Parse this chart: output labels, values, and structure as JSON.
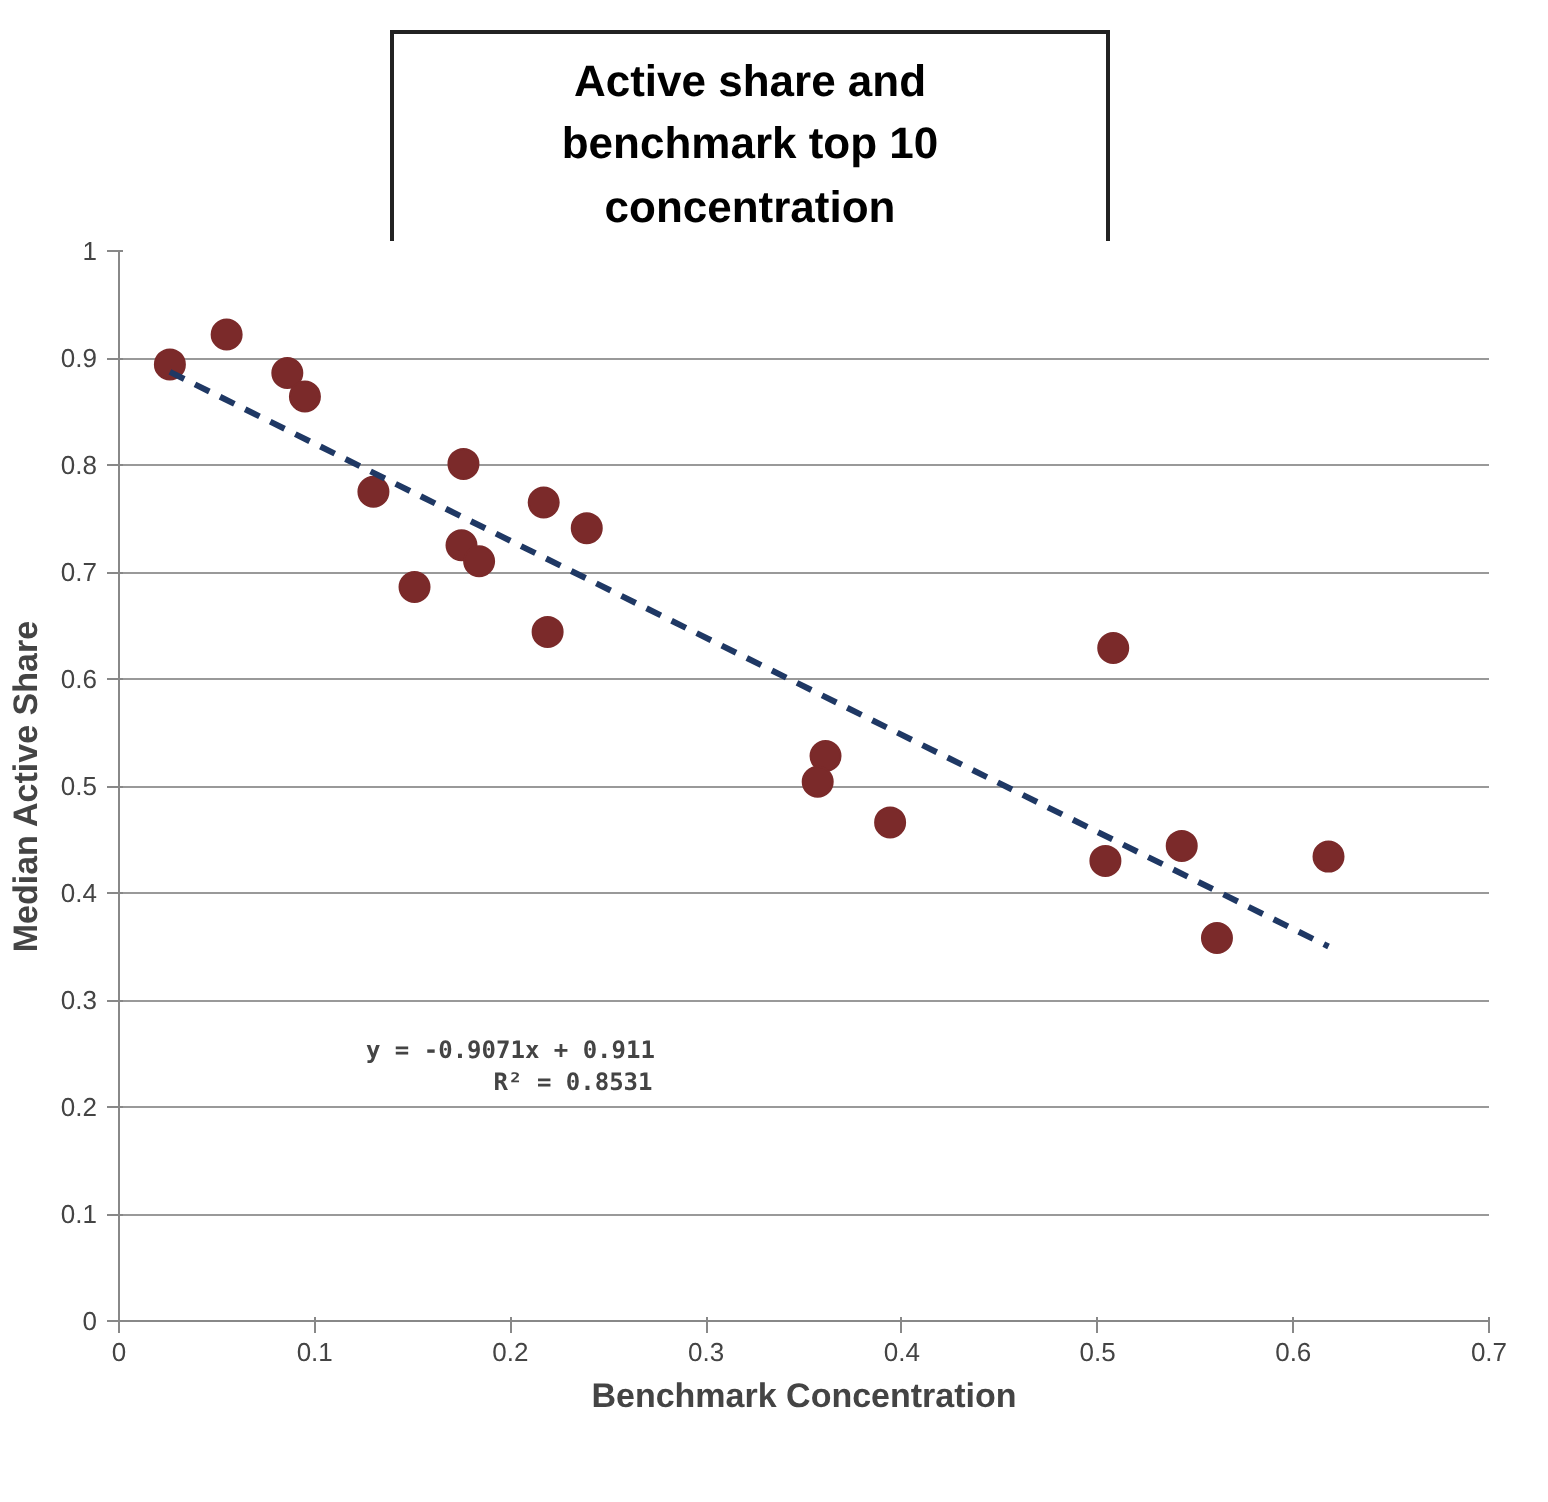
{
  "chart_data": {
    "type": "scatter",
    "title": "Active share and benchmark top 10 concentration",
    "xlabel": "Benchmark Concentration",
    "ylabel": "Median Active Share",
    "xlim": [
      0,
      0.7
    ],
    "xticks": [
      0,
      0.1,
      0.2,
      0.3,
      0.4,
      0.5,
      0.6,
      0.7
    ],
    "ylim": [
      0,
      1
    ],
    "yticks": [
      0,
      0.1,
      0.2,
      0.3,
      0.4,
      0.5,
      0.6,
      0.7,
      0.8,
      0.9,
      1
    ],
    "grid": "y",
    "annotations": [
      "y = -0.9071x + 0.911",
      "R² = 0.8531"
    ],
    "series": [
      {
        "marker": "circle",
        "color": "#7b2a2a",
        "x": [
          0.026,
          0.055,
          0.086,
          0.095,
          0.13,
          0.176,
          0.175,
          0.184,
          0.151,
          0.217,
          0.239,
          0.219,
          0.361,
          0.357,
          0.394,
          0.508,
          0.504,
          0.543,
          0.561,
          0.618
        ],
        "values": [
          0.894,
          0.922,
          0.886,
          0.864,
          0.775,
          0.801,
          0.725,
          0.71,
          0.686,
          0.765,
          0.741,
          0.644,
          0.528,
          0.504,
          0.466,
          0.629,
          0.43,
          0.444,
          0.358,
          0.434
        ]
      },
      {
        "type": "line",
        "line_style": "dashed",
        "color": "#1f3864",
        "x": [
          0.026,
          0.618
        ],
        "values": [
          0.887,
          0.35
        ]
      }
    ]
  }
}
